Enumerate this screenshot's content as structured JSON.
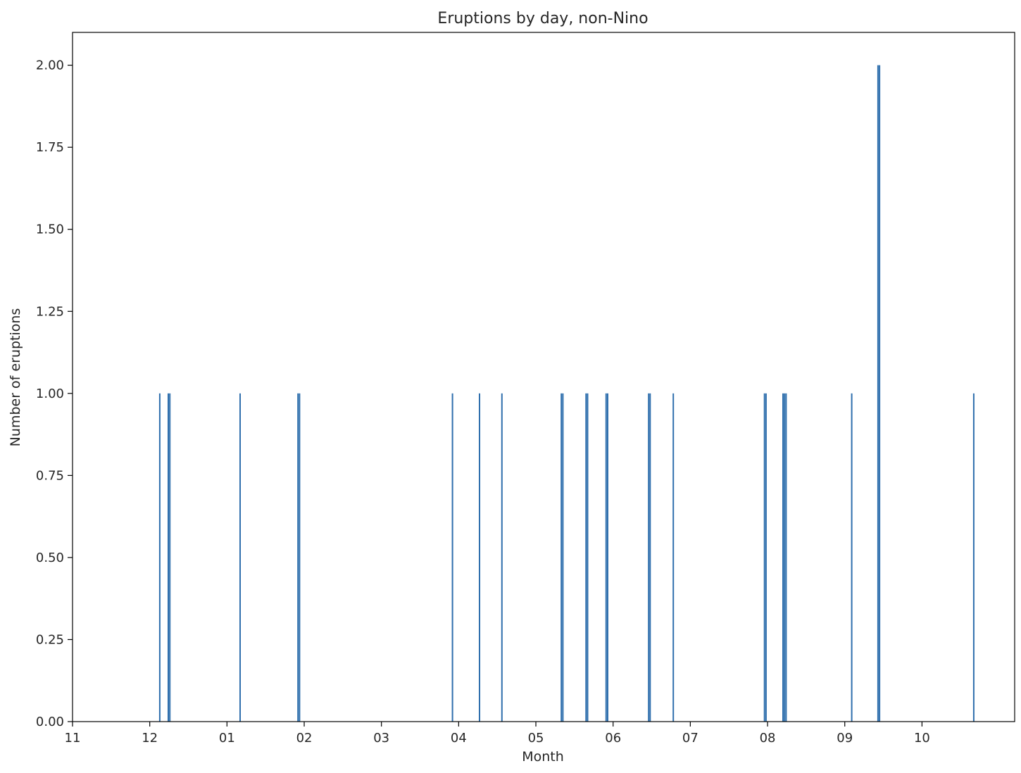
{
  "chart_data": {
    "type": "bar",
    "title": "Eruptions by day, non-Nino",
    "xlabel": "Month",
    "ylabel": "Number of eruptions",
    "x_ticks": [
      "11",
      "12",
      "01",
      "02",
      "03",
      "04",
      "05",
      "06",
      "07",
      "08",
      "09",
      "10"
    ],
    "x_range_months": [
      0,
      12.2
    ],
    "ylim": [
      0,
      2.1
    ],
    "y_ticks": [
      "0.00",
      "0.25",
      "0.50",
      "0.75",
      "1.00",
      "1.25",
      "1.50",
      "1.75",
      "2.00"
    ],
    "grid": false,
    "bar_color": "#2f6fad",
    "bars": [
      {
        "x": 1.13,
        "value": 1
      },
      {
        "x": 1.24,
        "value": 1
      },
      {
        "x": 1.26,
        "value": 1
      },
      {
        "x": 2.17,
        "value": 1
      },
      {
        "x": 2.92,
        "value": 1
      },
      {
        "x": 2.94,
        "value": 1
      },
      {
        "x": 4.92,
        "value": 1
      },
      {
        "x": 5.27,
        "value": 1
      },
      {
        "x": 5.56,
        "value": 1
      },
      {
        "x": 6.33,
        "value": 1
      },
      {
        "x": 6.35,
        "value": 1
      },
      {
        "x": 6.65,
        "value": 1
      },
      {
        "x": 6.67,
        "value": 1
      },
      {
        "x": 6.91,
        "value": 1
      },
      {
        "x": 6.93,
        "value": 1
      },
      {
        "x": 7.46,
        "value": 1
      },
      {
        "x": 7.48,
        "value": 1
      },
      {
        "x": 7.78,
        "value": 1
      },
      {
        "x": 8.96,
        "value": 1
      },
      {
        "x": 8.98,
        "value": 1
      },
      {
        "x": 9.2,
        "value": 1
      },
      {
        "x": 9.22,
        "value": 1
      },
      {
        "x": 9.24,
        "value": 1
      },
      {
        "x": 10.09,
        "value": 1
      },
      {
        "x": 10.43,
        "value": 2
      },
      {
        "x": 10.45,
        "value": 2
      },
      {
        "x": 11.67,
        "value": 1
      }
    ]
  }
}
